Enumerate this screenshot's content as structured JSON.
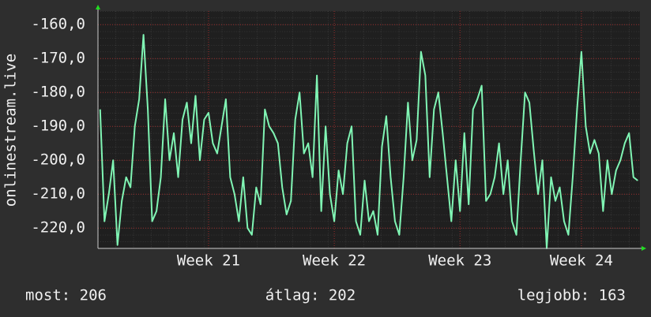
{
  "chart_data": {
    "type": "line",
    "y_label": "onlinestream.live",
    "color": "#80f5b4",
    "categories": [
      null,
      null,
      null,
      null,
      null,
      null,
      null,
      null,
      null,
      null,
      null,
      null,
      null,
      null,
      null,
      null,
      null,
      null,
      null,
      null,
      null,
      null,
      null,
      null,
      null,
      "Week 21",
      null,
      null,
      null,
      null,
      null,
      null,
      null,
      null,
      null,
      null,
      null,
      null,
      null,
      null,
      null,
      null,
      null,
      null,
      null,
      null,
      null,
      null,
      null,
      null,
      null,
      null,
      null,
      null,
      "Week 22",
      null,
      null,
      null,
      null,
      null,
      null,
      null,
      null,
      null,
      null,
      null,
      null,
      null,
      null,
      null,
      null,
      null,
      null,
      null,
      null,
      null,
      null,
      null,
      null,
      null,
      null,
      null,
      null,
      "Week 23",
      null,
      null,
      null,
      null,
      null,
      null,
      null,
      null,
      null,
      null,
      null,
      null,
      null,
      null,
      null,
      null,
      null,
      null,
      null,
      null,
      null,
      null,
      null,
      null,
      null,
      null,
      null,
      "Week 24",
      null,
      null,
      null,
      null,
      null,
      null,
      null,
      null,
      null,
      null,
      null,
      null,
      null
    ],
    "values": [
      -185,
      -218,
      -210,
      -200,
      -225,
      -212,
      -205,
      -208,
      -190,
      -182,
      -163,
      -185,
      -218,
      -215,
      -205,
      -182,
      -200,
      -192,
      -205,
      -188,
      -183,
      -195,
      -181,
      -200,
      -188,
      -186,
      -195,
      -198,
      -190,
      -182,
      -205,
      -210,
      -218,
      -205,
      -220,
      -222,
      -208,
      -213,
      -185,
      -190,
      -192,
      -195,
      -208,
      -216,
      -212,
      -188,
      -180,
      -198,
      -195,
      -205,
      -175,
      -215,
      -190,
      -210,
      -218,
      -203,
      -210,
      -195,
      -190,
      -218,
      -222,
      -206,
      -218,
      -215,
      -222,
      -196,
      -187,
      -205,
      -218,
      -222,
      -205,
      -183,
      -200,
      -194,
      -168,
      -175,
      -205,
      -185,
      -180,
      -192,
      -205,
      -218,
      -200,
      -215,
      -192,
      -213,
      -185,
      -182,
      -178,
      -212,
      -210,
      -205,
      -195,
      -210,
      -200,
      -218,
      -222,
      -200,
      -180,
      -183,
      -197,
      -210,
      -200,
      -226,
      -205,
      -212,
      -208,
      -218,
      -222,
      -205,
      -185,
      -168,
      -190,
      -198,
      -194,
      -198,
      -215,
      -200,
      -210,
      -203,
      -200,
      -195,
      -192,
      -205,
      -206
    ],
    "ylim": [
      -226,
      -156
    ],
    "yticks": [
      {
        "value": -160,
        "label": "-160,0"
      },
      {
        "value": -170,
        "label": "-170,0"
      },
      {
        "value": -180,
        "label": "-180,0"
      },
      {
        "value": -190,
        "label": "-190,0"
      },
      {
        "value": -200,
        "label": "-200,0"
      },
      {
        "value": -210,
        "label": "-210,0"
      },
      {
        "value": -220,
        "label": "-220,0"
      }
    ],
    "grid": true,
    "footer": [
      "most: 206",
      "átlag: 202",
      "legjobb: 163"
    ]
  }
}
